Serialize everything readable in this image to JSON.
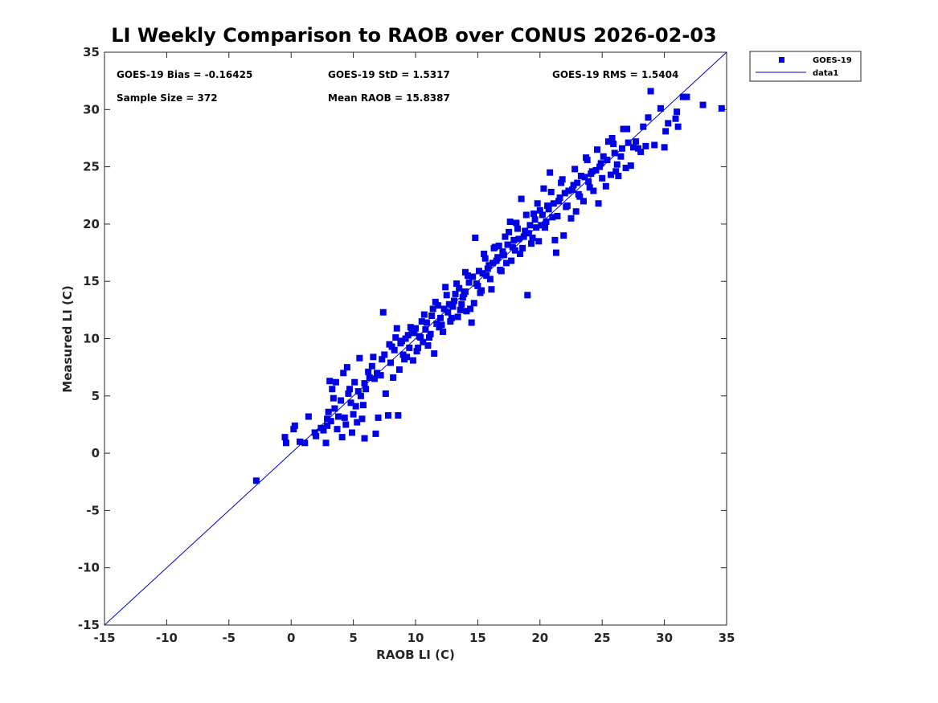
{
  "chart_data": {
    "type": "scatter",
    "title": "LI Weekly Comparison to RAOB over CONUS 2026-02-03",
    "xlabel": "RAOB LI (C)",
    "ylabel": "Measured LI (C)",
    "xlim": [
      -15,
      35
    ],
    "ylim": [
      -15,
      35
    ],
    "xticks": [
      "-15",
      "-10",
      "-5",
      "0",
      "5",
      "10",
      "15",
      "20",
      "25",
      "30",
      "35"
    ],
    "yticks": [
      "-15",
      "-10",
      "-5",
      "0",
      "5",
      "10",
      "15",
      "20",
      "25",
      "30",
      "35"
    ],
    "stats": {
      "bias": "GOES-19 Bias = -0.16425",
      "std": "GOES-19 StD = 1.5317",
      "rms": "GOES-19 RMS = 1.5404",
      "sample": "Sample Size = 372",
      "mean": "Mean RAOB = 15.8387"
    },
    "legend": {
      "position": "outside-top-right",
      "entries": [
        "GOES-19",
        "data1"
      ]
    },
    "colors": {
      "marker": "#0000e6",
      "line": "#0000cc"
    },
    "reference_line": {
      "name": "data1",
      "x": [
        -15,
        35
      ],
      "y": [
        -15,
        35
      ]
    },
    "series": [
      {
        "name": "GOES-19",
        "marker": "square",
        "points": [
          [
            -2.8,
            -2.4
          ],
          [
            -0.5,
            1.4
          ],
          [
            -0.4,
            0.9
          ],
          [
            0.2,
            2.1
          ],
          [
            0.3,
            2.4
          ],
          [
            0.7,
            1.0
          ],
          [
            1.1,
            0.9
          ],
          [
            1.4,
            3.2
          ],
          [
            2.0,
            1.5
          ],
          [
            2.6,
            2.0
          ],
          [
            2.8,
            0.9
          ],
          [
            2.9,
            2.4
          ],
          [
            3.0,
            3.6
          ],
          [
            3.1,
            6.3
          ],
          [
            3.2,
            2.8
          ],
          [
            3.3,
            5.6
          ],
          [
            3.5,
            3.9
          ],
          [
            3.6,
            6.2
          ],
          [
            3.7,
            2.1
          ],
          [
            3.8,
            3.2
          ],
          [
            4.0,
            4.6
          ],
          [
            4.1,
            1.4
          ],
          [
            4.2,
            7.0
          ],
          [
            4.3,
            3.1
          ],
          [
            4.4,
            2.5
          ],
          [
            4.5,
            7.5
          ],
          [
            4.7,
            5.6
          ],
          [
            4.9,
            1.8
          ],
          [
            5.0,
            3.4
          ],
          [
            5.1,
            6.2
          ],
          [
            5.2,
            4.1
          ],
          [
            5.3,
            2.7
          ],
          [
            5.4,
            5.4
          ],
          [
            5.5,
            8.3
          ],
          [
            5.6,
            5.0
          ],
          [
            5.7,
            3.0
          ],
          [
            5.8,
            4.2
          ],
          [
            5.9,
            1.3
          ],
          [
            6.0,
            5.6
          ],
          [
            6.2,
            7.1
          ],
          [
            6.5,
            7.6
          ],
          [
            6.7,
            6.5
          ],
          [
            6.8,
            1.7
          ],
          [
            7.0,
            3.1
          ],
          [
            7.2,
            6.8
          ],
          [
            7.4,
            12.3
          ],
          [
            7.5,
            8.6
          ],
          [
            7.6,
            5.2
          ],
          [
            7.8,
            3.3
          ],
          [
            7.9,
            9.5
          ],
          [
            8.0,
            7.9
          ],
          [
            8.2,
            6.6
          ],
          [
            8.3,
            9.0
          ],
          [
            8.5,
            10.9
          ],
          [
            8.6,
            3.3
          ],
          [
            8.7,
            7.3
          ],
          [
            8.8,
            9.6
          ],
          [
            9.0,
            8.6
          ],
          [
            9.2,
            10.0
          ],
          [
            9.3,
            8.4
          ],
          [
            9.5,
            9.2
          ],
          [
            9.7,
            10.6
          ],
          [
            9.8,
            8.1
          ],
          [
            10.0,
            10.9
          ],
          [
            10.1,
            8.9
          ],
          [
            10.3,
            10.2
          ],
          [
            10.5,
            11.5
          ],
          [
            10.6,
            9.7
          ],
          [
            10.8,
            10.8
          ],
          [
            11.0,
            9.4
          ],
          [
            11.2,
            10.4
          ],
          [
            11.4,
            12.6
          ],
          [
            11.5,
            8.7
          ],
          [
            11.7,
            11.3
          ],
          [
            11.8,
            12.9
          ],
          [
            12.0,
            11.8
          ],
          [
            12.2,
            10.6
          ],
          [
            12.4,
            14.5
          ],
          [
            12.6,
            12.3
          ],
          [
            12.8,
            11.5
          ],
          [
            13.0,
            12.8
          ],
          [
            13.2,
            13.9
          ],
          [
            13.4,
            11.9
          ],
          [
            13.6,
            12.5
          ],
          [
            13.8,
            13.6
          ],
          [
            14.0,
            14.1
          ],
          [
            14.2,
            15.5
          ],
          [
            14.4,
            12.6
          ],
          [
            14.5,
            11.4
          ],
          [
            14.7,
            13.1
          ],
          [
            14.8,
            18.8
          ],
          [
            14.9,
            14.8
          ],
          [
            15.1,
            15.9
          ],
          [
            15.3,
            14.2
          ],
          [
            15.5,
            17.4
          ],
          [
            15.7,
            15.5
          ],
          [
            15.9,
            16.4
          ],
          [
            16.1,
            14.3
          ],
          [
            16.3,
            17.9
          ],
          [
            16.5,
            16.8
          ],
          [
            16.7,
            18.1
          ],
          [
            16.9,
            15.9
          ],
          [
            17.1,
            17.3
          ],
          [
            17.3,
            16.6
          ],
          [
            17.5,
            19.3
          ],
          [
            17.6,
            20.2
          ],
          [
            17.8,
            18.0
          ],
          [
            18.0,
            17.7
          ],
          [
            18.2,
            19.6
          ],
          [
            18.4,
            17.4
          ],
          [
            18.5,
            22.2
          ],
          [
            18.7,
            18.9
          ],
          [
            18.9,
            20.8
          ],
          [
            19.0,
            13.8
          ],
          [
            19.1,
            19.2
          ],
          [
            19.3,
            18.3
          ],
          [
            19.5,
            20.9
          ],
          [
            19.7,
            19.7
          ],
          [
            19.9,
            18.5
          ],
          [
            20.0,
            21.2
          ],
          [
            20.1,
            19.9
          ],
          [
            20.3,
            23.1
          ],
          [
            20.5,
            20.2
          ],
          [
            20.6,
            21.6
          ],
          [
            20.8,
            24.5
          ],
          [
            21.0,
            20.6
          ],
          [
            21.2,
            18.6
          ],
          [
            21.3,
            17.5
          ],
          [
            21.5,
            22.0
          ],
          [
            21.7,
            23.6
          ],
          [
            21.9,
            19.0
          ],
          [
            22.1,
            21.5
          ],
          [
            22.3,
            22.9
          ],
          [
            22.5,
            20.5
          ],
          [
            22.7,
            23.4
          ],
          [
            22.9,
            21.1
          ],
          [
            23.1,
            22.6
          ],
          [
            23.3,
            24.2
          ],
          [
            23.5,
            22.0
          ],
          [
            23.7,
            25.8
          ],
          [
            23.9,
            23.7
          ],
          [
            24.1,
            24.4
          ],
          [
            24.3,
            22.9
          ],
          [
            24.5,
            24.7
          ],
          [
            24.7,
            21.8
          ],
          [
            24.9,
            25.3
          ],
          [
            25.1,
            25.9
          ],
          [
            25.3,
            23.3
          ],
          [
            25.5,
            27.2
          ],
          [
            25.7,
            24.3
          ],
          [
            25.9,
            27.0
          ],
          [
            26.1,
            24.6
          ],
          [
            26.3,
            24.2
          ],
          [
            26.5,
            25.9
          ],
          [
            26.7,
            28.3
          ],
          [
            26.9,
            24.9
          ],
          [
            27.1,
            27.1
          ],
          [
            27.3,
            25.1
          ],
          [
            27.5,
            26.7
          ],
          [
            27.7,
            27.2
          ],
          [
            27.9,
            26.6
          ],
          [
            28.1,
            26.3
          ],
          [
            28.3,
            28.5
          ],
          [
            28.5,
            26.8
          ],
          [
            28.7,
            29.3
          ],
          [
            28.9,
            31.6
          ],
          [
            29.2,
            26.9
          ],
          [
            29.7,
            30.1
          ],
          [
            30.0,
            26.7
          ],
          [
            30.1,
            28.1
          ],
          [
            30.3,
            28.8
          ],
          [
            30.9,
            29.2
          ],
          [
            31.0,
            29.8
          ],
          [
            31.1,
            28.5
          ],
          [
            31.5,
            31.1
          ],
          [
            31.8,
            31.1
          ],
          [
            33.1,
            30.4
          ],
          [
            34.6,
            30.1
          ],
          [
            8.1,
            9.3
          ],
          [
            8.9,
            9.8
          ],
          [
            9.4,
            10.3
          ],
          [
            9.9,
            10.5
          ],
          [
            10.4,
            10.1
          ],
          [
            10.9,
            11.4
          ],
          [
            11.3,
            12.0
          ],
          [
            11.9,
            11.0
          ],
          [
            12.3,
            12.6
          ],
          [
            12.7,
            13.0
          ],
          [
            13.1,
            13.3
          ],
          [
            13.5,
            14.4
          ],
          [
            13.9,
            13.9
          ],
          [
            14.3,
            14.9
          ],
          [
            14.6,
            15.4
          ],
          [
            15.0,
            14.6
          ],
          [
            15.4,
            15.7
          ],
          [
            15.8,
            16.1
          ],
          [
            16.2,
            16.6
          ],
          [
            16.6,
            17.1
          ],
          [
            17.0,
            17.6
          ],
          [
            17.4,
            18.2
          ],
          [
            17.9,
            18.6
          ],
          [
            18.3,
            18.7
          ],
          [
            18.8,
            19.4
          ],
          [
            19.2,
            19.9
          ],
          [
            19.6,
            20.4
          ],
          [
            20.2,
            20.8
          ],
          [
            20.7,
            21.3
          ],
          [
            21.1,
            21.8
          ],
          [
            21.6,
            22.3
          ],
          [
            22.0,
            22.7
          ],
          [
            22.6,
            23.0
          ],
          [
            23.0,
            23.6
          ],
          [
            23.6,
            24.1
          ],
          [
            24.2,
            24.6
          ],
          [
            24.8,
            25.0
          ],
          [
            25.4,
            25.6
          ],
          [
            26.0,
            26.2
          ],
          [
            26.6,
            26.6
          ],
          [
            7.3,
            8.2
          ],
          [
            6.9,
            7.0
          ],
          [
            6.3,
            6.6
          ],
          [
            5.9,
            6.1
          ],
          [
            4.8,
            4.4
          ],
          [
            4.6,
            5.2
          ],
          [
            3.4,
            4.8
          ],
          [
            2.9,
            3.0
          ],
          [
            2.4,
            2.2
          ],
          [
            1.9,
            1.8
          ],
          [
            9.1,
            8.2
          ],
          [
            10.2,
            9.2
          ],
          [
            11.1,
            10.1
          ],
          [
            12.1,
            11.2
          ],
          [
            12.9,
            11.8
          ],
          [
            13.7,
            13.0
          ],
          [
            14.1,
            12.4
          ],
          [
            15.2,
            14.0
          ],
          [
            16.0,
            15.2
          ],
          [
            16.8,
            16.0
          ],
          [
            17.7,
            16.8
          ],
          [
            18.6,
            17.9
          ],
          [
            19.4,
            18.8
          ],
          [
            20.4,
            19.7
          ],
          [
            21.4,
            20.7
          ],
          [
            22.2,
            21.6
          ],
          [
            23.2,
            22.4
          ],
          [
            24.0,
            23.2
          ],
          [
            25.0,
            24.0
          ],
          [
            26.2,
            25.2
          ],
          [
            9.6,
            11.0
          ],
          [
            10.7,
            12.1
          ],
          [
            11.6,
            13.2
          ],
          [
            12.5,
            13.8
          ],
          [
            13.3,
            14.8
          ],
          [
            14.0,
            15.8
          ],
          [
            15.6,
            17.0
          ],
          [
            16.4,
            18.0
          ],
          [
            17.2,
            18.9
          ],
          [
            18.1,
            20.1
          ],
          [
            19.8,
            21.8
          ],
          [
            20.9,
            22.8
          ],
          [
            21.8,
            23.9
          ],
          [
            22.8,
            24.8
          ],
          [
            23.8,
            25.6
          ],
          [
            24.6,
            26.5
          ],
          [
            25.8,
            27.5
          ],
          [
            27.0,
            28.3
          ],
          [
            8.4,
            10.1
          ],
          [
            6.6,
            8.4
          ]
        ]
      }
    ]
  }
}
